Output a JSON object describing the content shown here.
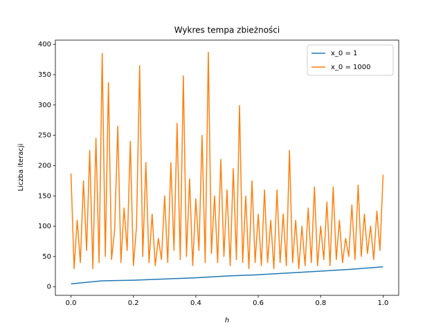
{
  "chart_data": {
    "type": "line",
    "title": "Wykres tempa zbieżności",
    "x_label": "h",
    "y_label": "Liczba iteracji",
    "xlim": [
      -0.05,
      1.05
    ],
    "ylim": [
      -14,
      407
    ],
    "xticks": [
      {
        "value": 0,
        "label": "0.0"
      },
      0.2,
      0.4,
      0.6,
      0.8,
      {
        "value": 1,
        "label": "1.0"
      }
    ],
    "yticks": [
      0,
      50,
      100,
      150,
      200,
      250,
      300,
      350,
      400
    ],
    "grid": false,
    "legend": "upper right",
    "series": [
      {
        "name": "x_0 = 1",
        "color": "#1f77b4",
        "x": [
          0,
          0.1,
          0.2,
          0.3,
          0.4,
          0.5,
          0.6,
          0.7,
          0.8,
          0.9,
          1
        ],
        "values": [
          5,
          10,
          11,
          13,
          15,
          18,
          20,
          23,
          26,
          29,
          33
        ]
      },
      {
        "name": "x_0 = 1000",
        "color": "#ff7f0e",
        "x": [
          0,
          0.01,
          0.02,
          0.03,
          0.04,
          0.05,
          0.06,
          0.07,
          0.08,
          0.09,
          0.1,
          0.11,
          0.12,
          0.13,
          0.14,
          0.15,
          0.16,
          0.17,
          0.18,
          0.19,
          0.2,
          0.21,
          0.22,
          0.23,
          0.24,
          0.25,
          0.26,
          0.27,
          0.28,
          0.29,
          0.3,
          0.31,
          0.32,
          0.33,
          0.34,
          0.35,
          0.36,
          0.37,
          0.38,
          0.39,
          0.4,
          0.41,
          0.42,
          0.43,
          0.44,
          0.45,
          0.46,
          0.47,
          0.48,
          0.49,
          0.5,
          0.51,
          0.52,
          0.53,
          0.54,
          0.55,
          0.56,
          0.57,
          0.58,
          0.59,
          0.6,
          0.61,
          0.62,
          0.63,
          0.64,
          0.65,
          0.66,
          0.67,
          0.68,
          0.69,
          0.7,
          0.71,
          0.72,
          0.73,
          0.74,
          0.75,
          0.76,
          0.77,
          0.78,
          0.79,
          0.8,
          0.81,
          0.82,
          0.83,
          0.84,
          0.85,
          0.86,
          0.87,
          0.88,
          0.89,
          0.9,
          0.91,
          0.92,
          0.93,
          0.94,
          0.95,
          0.96,
          0.97,
          0.98,
          0.99,
          1
        ],
        "values": [
          187,
          30,
          110,
          40,
          175,
          60,
          225,
          30,
          245,
          40,
          385,
          50,
          337,
          45,
          95,
          265,
          40,
          130,
          60,
          240,
          35,
          100,
          365,
          50,
          205,
          40,
          120,
          35,
          80,
          45,
          150,
          40,
          205,
          60,
          270,
          45,
          348,
          50,
          178,
          35,
          145,
          60,
          250,
          40,
          387,
          55,
          150,
          40,
          210,
          50,
          160,
          35,
          195,
          45,
          299,
          40,
          150,
          30,
          175,
          40,
          120,
          35,
          160,
          40,
          110,
          30,
          160,
          40,
          120,
          35,
          225,
          40,
          110,
          30,
          100,
          35,
          130,
          40,
          165,
          35,
          100,
          45,
          140,
          35,
          165,
          45,
          110,
          40,
          80,
          50,
          135,
          45,
          168,
          50,
          120,
          55,
          100,
          45,
          125,
          60,
          185
        ]
      }
    ]
  }
}
